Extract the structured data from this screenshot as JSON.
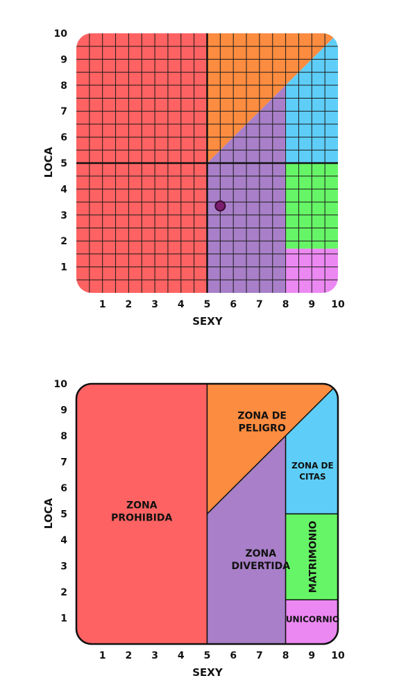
{
  "chart_data": [
    {
      "type": "zone-chart",
      "xlabel": "SEXY",
      "ylabel": "LOCA",
      "xlim": [
        0,
        10
      ],
      "ylim": [
        0,
        10
      ],
      "x_ticks": [
        "1",
        "2",
        "3",
        "4",
        "5",
        "6",
        "7",
        "8",
        "9",
        "10"
      ],
      "y_ticks": [
        "1",
        "2",
        "3",
        "4",
        "5",
        "6",
        "7",
        "8",
        "9",
        "10"
      ],
      "grid": true,
      "colors": {
        "red": "#fe6262",
        "orange": "#fc8c40",
        "purple": "#a87fc8",
        "blue": "#5ecef8",
        "green": "#66f566",
        "pink": "#ec88f2",
        "point": "#7b1e6e"
      },
      "point": {
        "x": 5.5,
        "y": 3.35
      }
    },
    {
      "type": "zone-chart",
      "xlabel": "SEXY",
      "ylabel": "LOCA",
      "xlim": [
        0,
        10
      ],
      "ylim": [
        0,
        10
      ],
      "x_ticks": [
        "1",
        "2",
        "3",
        "4",
        "5",
        "6",
        "7",
        "8",
        "9",
        "10"
      ],
      "y_ticks": [
        "1",
        "2",
        "3",
        "4",
        "5",
        "6",
        "7",
        "8",
        "9",
        "10"
      ],
      "grid": false,
      "zones": [
        {
          "key": "prohibida",
          "lines": [
            "ZONA",
            "PROHIBIDA"
          ],
          "color": "#fe6262",
          "label_at": [
            2.5,
            5.1
          ],
          "rotate": false
        },
        {
          "key": "peligro",
          "lines": [
            "ZONA DE",
            "PELIGRO"
          ],
          "color": "#fc8c40",
          "label_at": [
            7.1,
            8.55
          ],
          "rotate": false
        },
        {
          "key": "divertida",
          "lines": [
            "ZONA",
            "DIVERTIDA"
          ],
          "color": "#a87fc8",
          "label_at": [
            7.05,
            3.25
          ],
          "rotate": false
        },
        {
          "key": "citas",
          "lines": [
            "ZONA DE",
            "CITAS"
          ],
          "color": "#5ecef8",
          "label_at": [
            9.03,
            6.65
          ],
          "rotate": false
        },
        {
          "key": "matrimonio",
          "lines": [
            "MATRIMONIO"
          ],
          "color": "#66f566",
          "label_at": [
            9.03,
            3.35
          ],
          "rotate": true
        },
        {
          "key": "unicornio",
          "lines": [
            "UNICORNIO"
          ],
          "color": "#ec88f2",
          "label_at": [
            9.03,
            0.95
          ],
          "rotate": false
        }
      ]
    }
  ]
}
